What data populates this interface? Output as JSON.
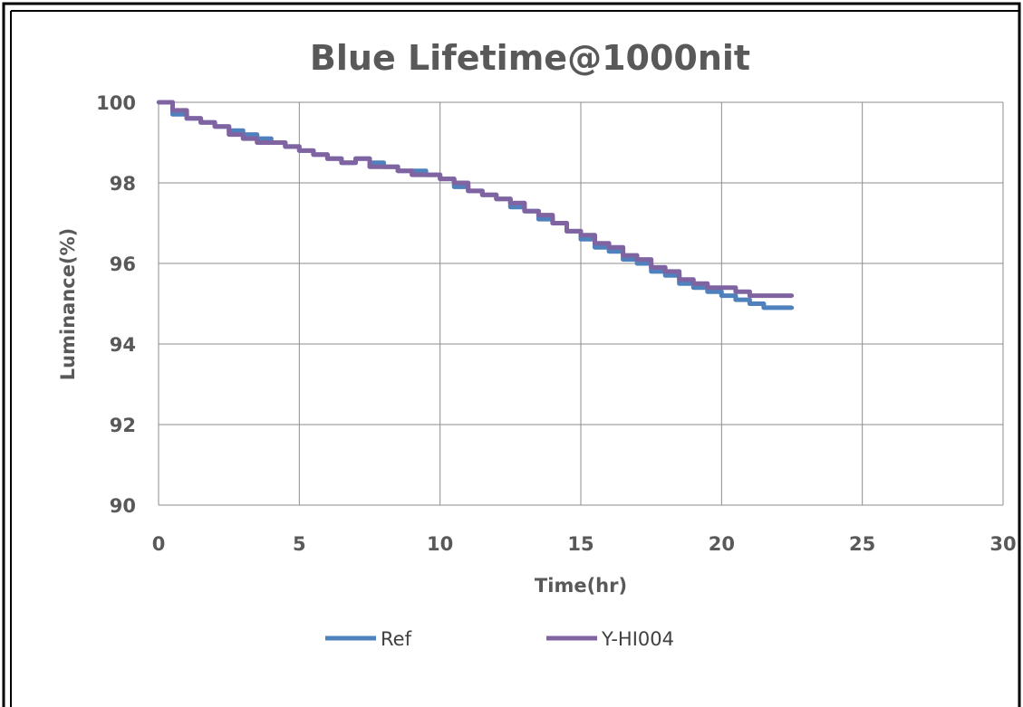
{
  "chart_data": {
    "type": "line",
    "title": "Blue Lifetime@1000nit",
    "xlabel": "Time(hr)",
    "ylabel": "Luminance(%)",
    "xlim": [
      0,
      30
    ],
    "ylim": [
      90,
      100
    ],
    "x_ticks": [
      0,
      5,
      10,
      15,
      20,
      25,
      30
    ],
    "y_ticks": [
      90,
      92,
      94,
      96,
      98,
      100
    ],
    "grid": true,
    "legend_position": "bottom",
    "series": [
      {
        "name": "Ref",
        "color": "#4f81bd",
        "x": [
          0,
          0.5,
          1,
          1.5,
          2,
          2.5,
          3,
          3.5,
          4,
          4.5,
          5,
          5.5,
          6,
          6.5,
          7,
          7.5,
          8,
          8.5,
          9,
          9.5,
          10,
          10.5,
          11,
          11.5,
          12,
          12.5,
          13,
          13.5,
          14,
          14.5,
          15,
          15.5,
          16,
          16.5,
          17,
          17.5,
          18,
          18.5,
          19,
          19.5,
          20,
          20.5,
          21,
          21.5,
          22,
          22.5
        ],
        "y": [
          100,
          99.7,
          99.6,
          99.5,
          99.4,
          99.3,
          99.2,
          99.1,
          99.0,
          98.9,
          98.8,
          98.7,
          98.6,
          98.5,
          98.6,
          98.5,
          98.4,
          98.3,
          98.3,
          98.2,
          98.1,
          97.9,
          97.8,
          97.7,
          97.6,
          97.4,
          97.3,
          97.1,
          97.0,
          96.8,
          96.6,
          96.4,
          96.3,
          96.1,
          96.0,
          95.8,
          95.7,
          95.5,
          95.4,
          95.3,
          95.2,
          95.1,
          95.0,
          94.9,
          94.9,
          94.9
        ]
      },
      {
        "name": "Y-HI004",
        "color": "#8064a2",
        "x": [
          0,
          0.5,
          1,
          1.5,
          2,
          2.5,
          3,
          3.5,
          4,
          4.5,
          5,
          5.5,
          6,
          6.5,
          7,
          7.5,
          8,
          8.5,
          9,
          9.5,
          10,
          10.5,
          11,
          11.5,
          12,
          12.5,
          13,
          13.5,
          14,
          14.5,
          15,
          15.5,
          16,
          16.5,
          17,
          17.5,
          18,
          18.5,
          19,
          19.5,
          20,
          20.5,
          21,
          21.5,
          22,
          22.5
        ],
        "y": [
          100,
          99.8,
          99.6,
          99.5,
          99.4,
          99.2,
          99.1,
          99.0,
          99.0,
          98.9,
          98.8,
          98.7,
          98.6,
          98.5,
          98.6,
          98.4,
          98.4,
          98.3,
          98.2,
          98.2,
          98.1,
          98.0,
          97.8,
          97.7,
          97.6,
          97.5,
          97.3,
          97.2,
          97.0,
          96.8,
          96.7,
          96.5,
          96.4,
          96.2,
          96.1,
          95.9,
          95.8,
          95.6,
          95.5,
          95.4,
          95.4,
          95.3,
          95.2,
          95.2,
          95.2,
          95.2
        ]
      }
    ]
  }
}
